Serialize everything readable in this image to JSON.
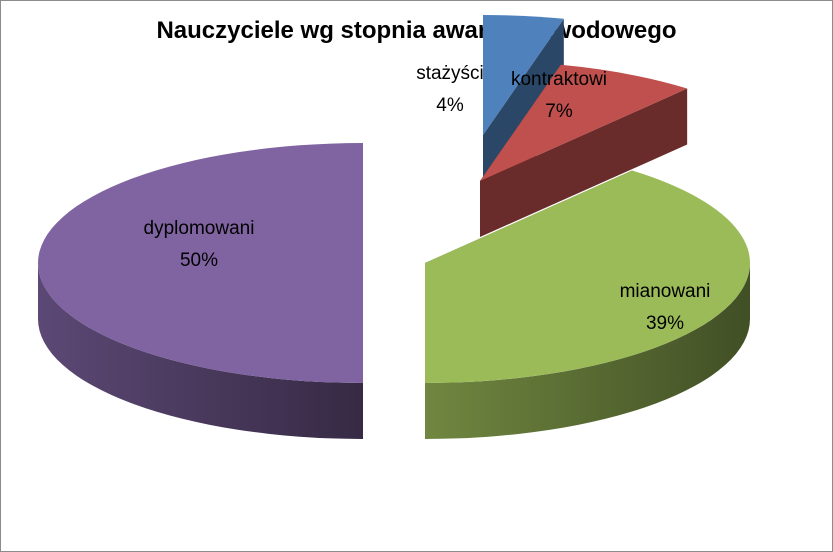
{
  "chart_data": {
    "type": "pie",
    "style": "3d-exploded",
    "title": "Nauczyciele wg stopnia awansu zawodowego",
    "slices": [
      {
        "label": "stażyści",
        "value": 4,
        "value_label": "4%",
        "color": "#4f81bd"
      },
      {
        "label": "kontraktowi",
        "value": 7,
        "value_label": "7%",
        "color": "#c0504d"
      },
      {
        "label": "mianowani",
        "value": 39,
        "value_label": "39%",
        "color": "#9bbb59"
      },
      {
        "label": "dyplomowani",
        "value": 50,
        "value_label": "50%",
        "color": "#8064a2"
      }
    ],
    "legend": "none",
    "data_labels": "category-and-percent"
  }
}
